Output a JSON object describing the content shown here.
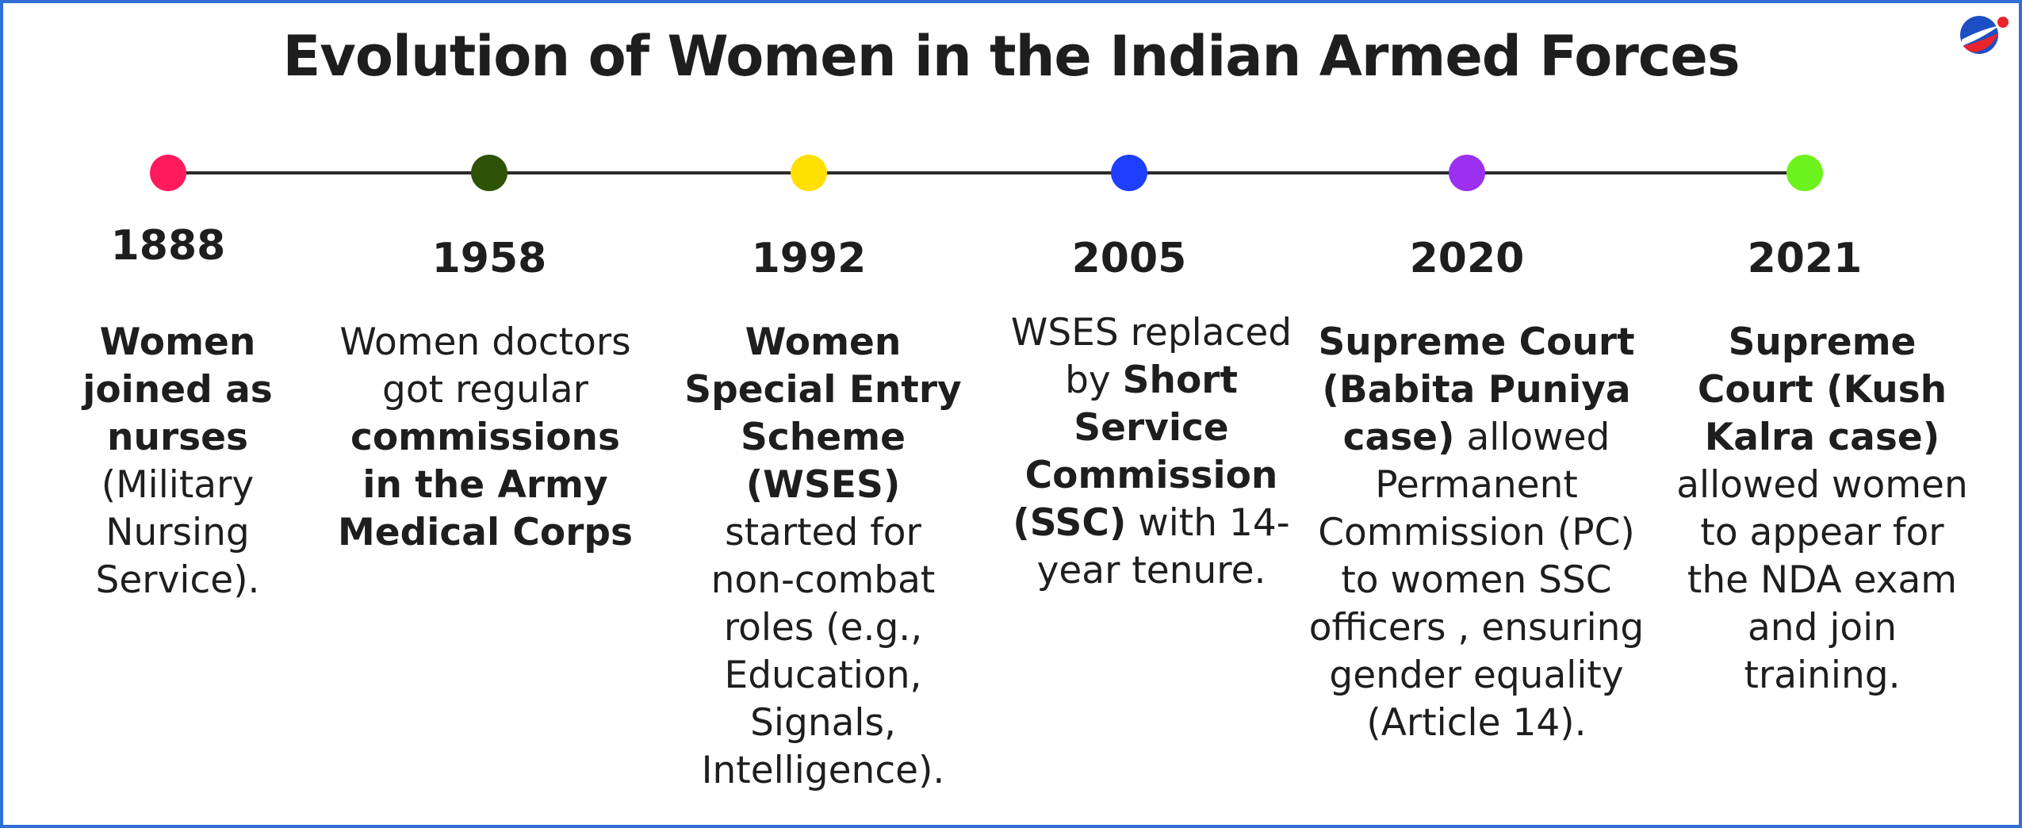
{
  "title": "Evolution of Women in the Indian Armed Forces",
  "colors": {
    "border": "#2f6fd6",
    "line": "#2a2a2a",
    "dots": [
      "#ff1a5e",
      "#2e5206",
      "#ffe000",
      "#1f3fff",
      "#9b30ef",
      "#6cf21c"
    ]
  },
  "logo": {
    "icon": "brand-globe-icon"
  },
  "events": [
    {
      "year": "1888",
      "parts": [
        {
          "text": "Women joined as nurses",
          "bold": true
        },
        {
          "text": " (Military Nursing Service).",
          "bold": false
        }
      ]
    },
    {
      "year": "1958",
      "parts": [
        {
          "text": "Women doctors got regular ",
          "bold": false
        },
        {
          "text": "commissions in the Army Medical Corps",
          "bold": true
        }
      ]
    },
    {
      "year": "1992",
      "parts": [
        {
          "text": "Women Special Entry Scheme (WSES)",
          "bold": true
        },
        {
          "text": " started for non-combat roles (e.g., Education, Signals, Intelligence).",
          "bold": false
        }
      ]
    },
    {
      "year": "2005",
      "parts": [
        {
          "text": "WSES replaced by ",
          "bold": false
        },
        {
          "text": "Short Service Commission (SSC)",
          "bold": true
        },
        {
          "text": " with 14-year tenure.",
          "bold": false
        }
      ]
    },
    {
      "year": "2020",
      "parts": [
        {
          "text": "Supreme Court (Babita Puniya case)",
          "bold": true
        },
        {
          "text": " allowed Permanent Commission (PC) to women SSC officers , ensuring gender equality (Article 14).",
          "bold": false
        }
      ]
    },
    {
      "year": "2021",
      "parts": [
        {
          "text": "Supreme Court (Kush Kalra case)",
          "bold": true
        },
        {
          "text": " allowed women to appear for the NDA exam and join training.",
          "bold": false
        }
      ]
    }
  ]
}
